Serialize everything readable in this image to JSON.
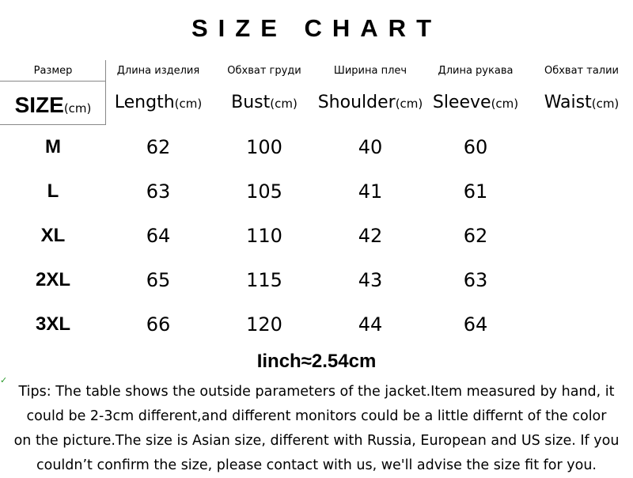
{
  "title": "SIZE CHART",
  "columns": [
    {
      "ru": "Размер",
      "en": "SIZE",
      "unit": "(cm)"
    },
    {
      "ru": "Длина изделия",
      "en": "Length",
      "unit": "(cm)"
    },
    {
      "ru": "Обхват груди",
      "en": "Bust",
      "unit": "(cm)"
    },
    {
      "ru": "Ширина плеч",
      "en": "Shoulder",
      "unit": "(cm)"
    },
    {
      "ru": "Длина рукава",
      "en": "Sleeve",
      "unit": "(cm)"
    },
    {
      "ru": "Обхват талии",
      "en": "Waist",
      "unit": "(cm)"
    }
  ],
  "rows": [
    [
      "M",
      "62",
      "100",
      "40",
      "60",
      ""
    ],
    [
      "L",
      "63",
      "105",
      "41",
      "61",
      ""
    ],
    [
      "XL",
      "64",
      "110",
      "42",
      "62",
      ""
    ],
    [
      "2XL",
      "65",
      "115",
      "43",
      "63",
      ""
    ],
    [
      "3XL",
      "66",
      "120",
      "44",
      "64",
      ""
    ]
  ],
  "conversion": "Iinch≈2.54cm",
  "tips": [
    "Tips:  The table shows the outside parameters of the jacket.Item measured by hand, it",
    "could be 2-3cm different,and different monitors could be a little differnt of the color",
    "on the picture.The size is Asian size, different with Russia, European and US size. If you",
    "couldn’t confirm the size, please contact with us, we'll advise the size fit for you."
  ]
}
